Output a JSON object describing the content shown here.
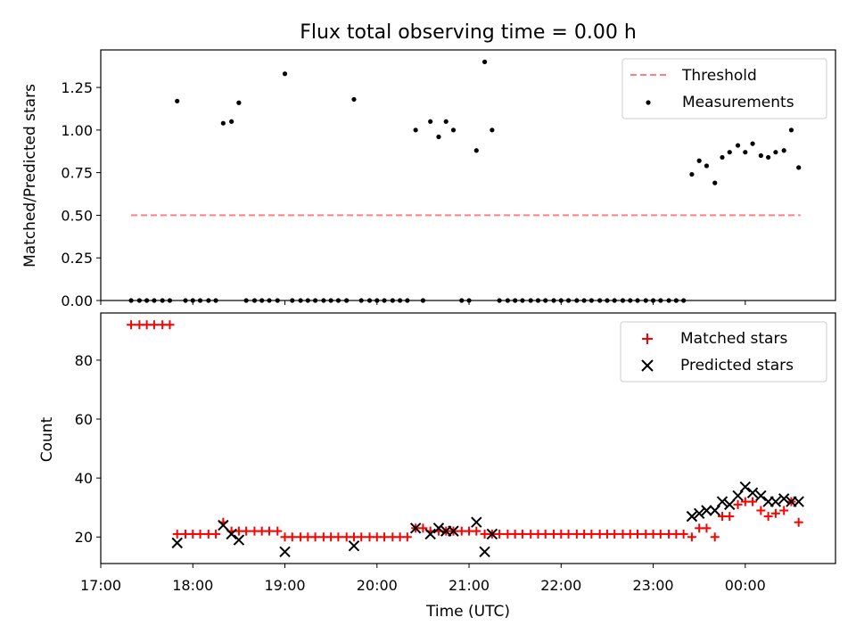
{
  "chart_data": [
    {
      "type": "scatter",
      "title": "Flux total observing time = 0.00 h",
      "xlabel": "",
      "ylabel": "Matched/Predicted stars",
      "xlim_hours": [
        17.0,
        24.98
      ],
      "ylim": [
        0,
        1.47
      ],
      "y_ticks": [
        0.0,
        0.25,
        0.5,
        0.75,
        1.0,
        1.25
      ],
      "y_tick_labels": [
        "0.00",
        "0.25",
        "0.50",
        "0.75",
        "1.00",
        "1.25"
      ],
      "legend_position": "top-right",
      "threshold": {
        "name": "Threshold",
        "value": 0.5,
        "x_range": [
          17.33,
          24.6
        ],
        "color": "#ff7f7f"
      },
      "measurements": {
        "name": "Measurements",
        "color": "#000000",
        "x": [
          17.33,
          17.42,
          17.5,
          17.58,
          17.67,
          17.75,
          17.83,
          17.92,
          18.0,
          18.08,
          18.17,
          18.25,
          18.33,
          18.42,
          18.5,
          18.58,
          18.67,
          18.75,
          18.83,
          18.92,
          19.0,
          19.08,
          19.17,
          19.25,
          19.33,
          19.42,
          19.5,
          19.58,
          19.67,
          19.75,
          19.83,
          19.92,
          20.0,
          20.08,
          20.17,
          20.25,
          20.33,
          20.42,
          20.5,
          20.58,
          20.67,
          20.75,
          20.83,
          20.92,
          21.0,
          21.08,
          21.17,
          21.25,
          21.33,
          21.42,
          21.5,
          21.58,
          21.67,
          21.75,
          21.83,
          21.92,
          22.0,
          22.08,
          22.17,
          22.25,
          22.33,
          22.42,
          22.5,
          22.58,
          22.67,
          22.75,
          22.83,
          22.92,
          23.0,
          23.08,
          23.17,
          23.25,
          23.33,
          23.42,
          23.5,
          23.58,
          23.67,
          23.75,
          23.83,
          23.92,
          24.0,
          24.08,
          24.17,
          24.25,
          24.33,
          24.42,
          24.5,
          24.58
        ],
        "y": [
          0,
          0,
          0,
          0,
          0,
          0,
          1.17,
          0,
          0,
          0,
          0,
          0,
          1.04,
          1.05,
          1.16,
          0,
          0,
          0,
          0,
          0,
          1.33,
          0,
          0,
          0,
          0,
          0,
          0,
          0,
          0,
          1.18,
          0,
          0,
          0,
          0,
          0,
          0,
          0,
          1.0,
          0,
          1.05,
          0.96,
          1.05,
          1.0,
          0,
          0,
          0.88,
          1.4,
          1.0,
          0,
          0,
          0,
          0,
          0,
          0,
          0,
          0,
          0,
          0,
          0,
          0,
          0,
          0,
          0,
          0,
          0,
          0,
          0,
          0,
          0,
          0,
          0,
          0,
          0,
          0.74,
          0.82,
          0.79,
          0.69,
          0.84,
          0.87,
          0.91,
          0.87,
          0.92,
          0.85,
          0.84,
          0.87,
          0.88,
          1.0,
          0.78
        ]
      }
    },
    {
      "type": "scatter",
      "title": "",
      "xlabel": "Time (UTC)",
      "ylabel": "Count",
      "xlim_hours": [
        17.0,
        24.98
      ],
      "ylim": [
        11,
        96
      ],
      "y_ticks": [
        20,
        40,
        60,
        80
      ],
      "y_tick_labels": [
        "20",
        "40",
        "60",
        "80"
      ],
      "x_ticks_hours": [
        17,
        18,
        19,
        20,
        21,
        22,
        23,
        24
      ],
      "x_tick_labels": [
        "17:00",
        "18:00",
        "19:00",
        "20:00",
        "21:00",
        "22:00",
        "23:00",
        "00:00"
      ],
      "legend_position": "top-right",
      "matched": {
        "name": "Matched stars",
        "color": "#ff0000",
        "x": [
          17.33,
          17.42,
          17.5,
          17.58,
          17.67,
          17.75,
          17.83,
          17.92,
          18.0,
          18.08,
          18.17,
          18.25,
          18.33,
          18.42,
          18.5,
          18.58,
          18.67,
          18.75,
          18.83,
          18.92,
          19.0,
          19.08,
          19.17,
          19.25,
          19.33,
          19.42,
          19.5,
          19.58,
          19.67,
          19.75,
          19.83,
          19.92,
          20.0,
          20.08,
          20.17,
          20.25,
          20.33,
          20.42,
          20.5,
          20.58,
          20.67,
          20.75,
          20.83,
          20.92,
          21.0,
          21.08,
          21.17,
          21.25,
          21.33,
          21.42,
          21.5,
          21.58,
          21.67,
          21.75,
          21.83,
          21.92,
          22.0,
          22.08,
          22.17,
          22.25,
          22.33,
          22.42,
          22.5,
          22.58,
          22.67,
          22.75,
          22.83,
          22.92,
          23.0,
          23.08,
          23.17,
          23.25,
          23.33,
          23.42,
          23.5,
          23.58,
          23.67,
          23.75,
          23.83,
          23.92,
          24.0,
          24.08,
          24.17,
          24.25,
          24.33,
          24.42,
          24.5,
          24.58
        ],
        "y": [
          92,
          92,
          92,
          92,
          92,
          92,
          21,
          21,
          21,
          21,
          21,
          21,
          25,
          22,
          22,
          22,
          22,
          22,
          22,
          22,
          20,
          20,
          20,
          20,
          20,
          20,
          20,
          20,
          20,
          20,
          20,
          20,
          20,
          20,
          20,
          20,
          20,
          23,
          23,
          22,
          22,
          22,
          22,
          22,
          22,
          22,
          21,
          21,
          21,
          21,
          21,
          21,
          21,
          21,
          21,
          21,
          21,
          21,
          21,
          21,
          21,
          21,
          21,
          21,
          21,
          21,
          21,
          21,
          21,
          21,
          21,
          21,
          21,
          20,
          23,
          23,
          20,
          27,
          27,
          31,
          32,
          32,
          29,
          27,
          28,
          29,
          32,
          25
        ]
      },
      "predicted": {
        "name": "Predicted stars",
        "color": "#000000",
        "x": [
          17.83,
          18.33,
          18.42,
          18.5,
          19.0,
          19.75,
          20.42,
          20.58,
          20.67,
          20.75,
          20.83,
          21.08,
          21.17,
          21.25,
          23.42,
          23.5,
          23.58,
          23.67,
          23.75,
          23.83,
          23.92,
          24.0,
          24.08,
          24.17,
          24.25,
          24.33,
          24.42,
          24.5,
          24.58
        ],
        "y": [
          18,
          24,
          21,
          19,
          15,
          17,
          23,
          21,
          23,
          22,
          22,
          25,
          15,
          21,
          27,
          28,
          29,
          29,
          32,
          31,
          34,
          37,
          35,
          34,
          32,
          32,
          33,
          32,
          32
        ]
      }
    }
  ]
}
